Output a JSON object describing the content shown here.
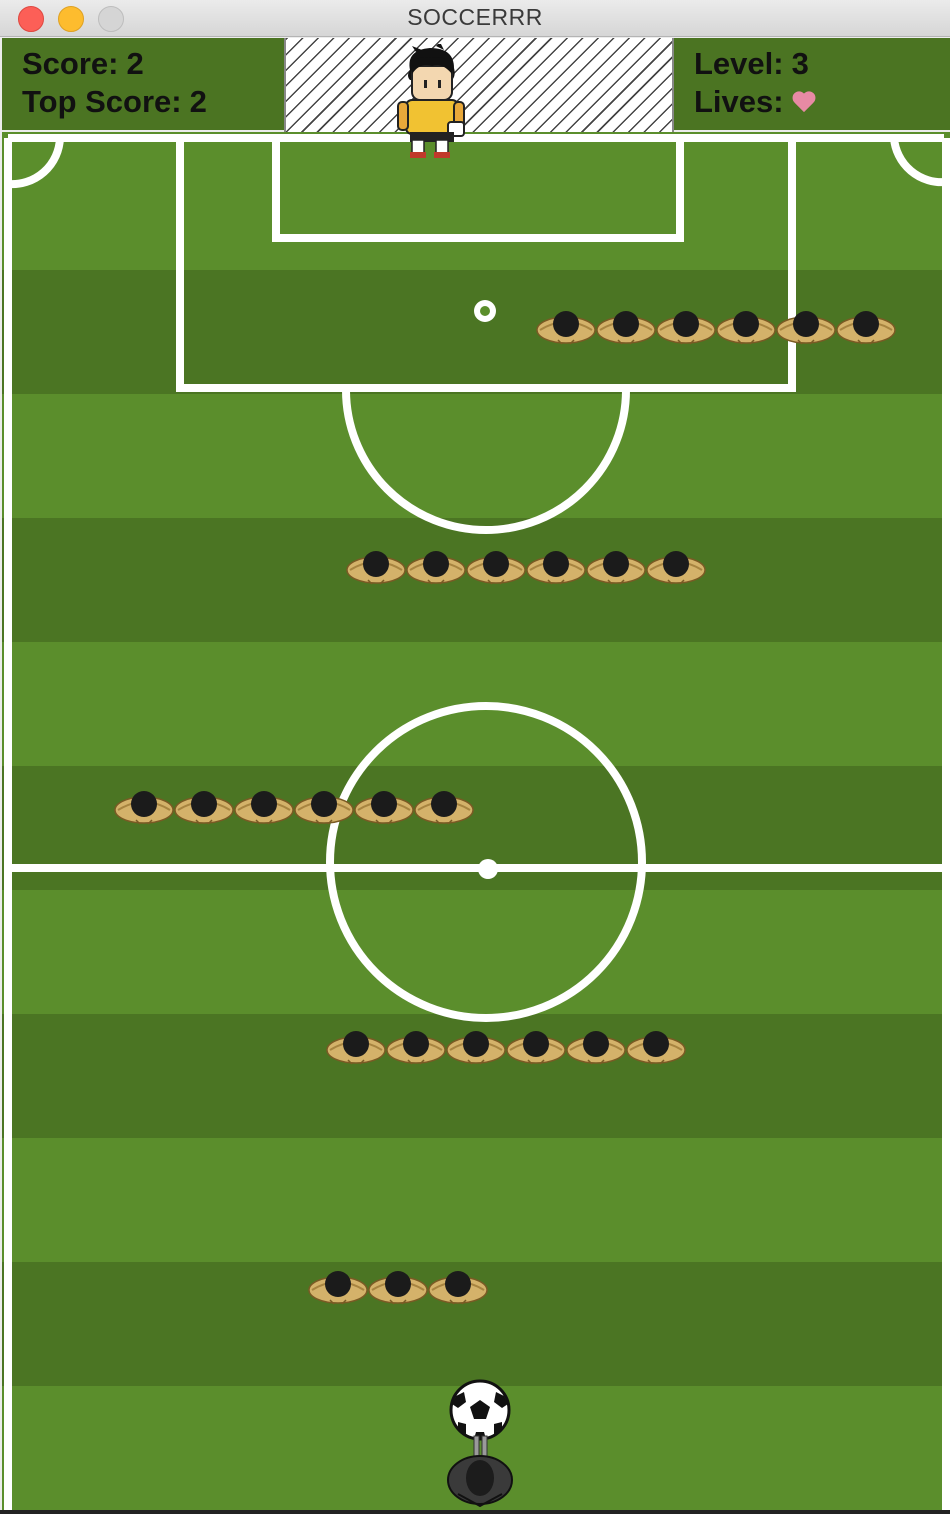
{
  "window": {
    "title": "SOCCERRR"
  },
  "hud": {
    "score_label": "Score:",
    "score_value": "2",
    "top_score_label": "Top Score:",
    "top_score_value": "2",
    "level_label": "Level:",
    "level_value": "3",
    "lives_label": "Lives:",
    "lives_count": 1
  },
  "game": {
    "defender_rows": [
      {
        "count": 6
      },
      {
        "count": 6
      },
      {
        "count": 6
      },
      {
        "count": 6
      },
      {
        "count": 3
      }
    ]
  },
  "colors": {
    "grass_light": "#5b8e2c",
    "grass_dark": "#4b7523",
    "lines": "#ffffff",
    "heart": "#e88aa4",
    "close_button": "#fc5f57",
    "minimize_button": "#fdbc2e"
  }
}
